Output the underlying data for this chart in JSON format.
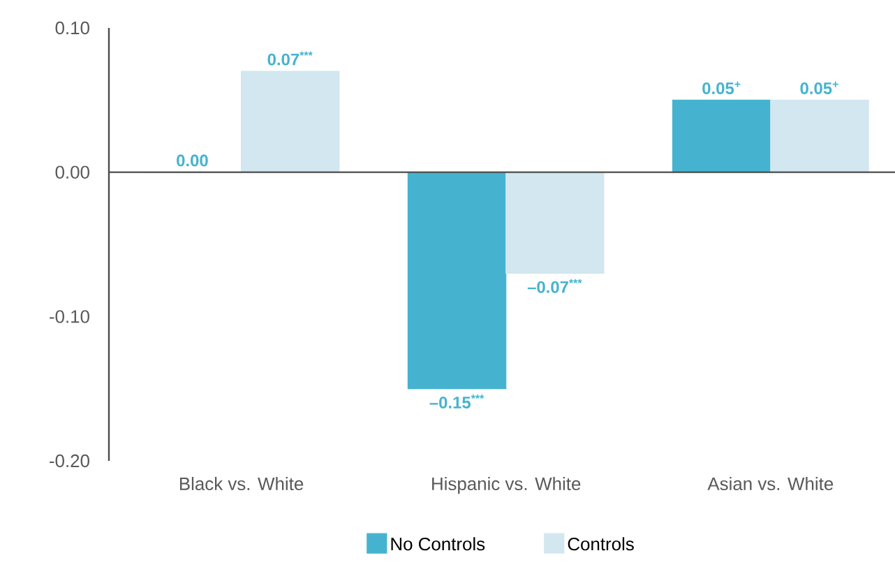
{
  "chart_data": {
    "type": "bar",
    "categories": [
      "Black vs. White",
      "Hispanic vs. White",
      "Asian vs. White"
    ],
    "series": [
      {
        "name": "No Controls",
        "color": "#45b3cf",
        "values": [
          0.0,
          -0.15,
          0.05
        ],
        "value_labels": [
          "0.00",
          "–0.15$^{***}$",
          "0.05$^{+}$"
        ]
      },
      {
        "name": "Controls",
        "color": "#d2e7f0",
        "values": [
          0.07,
          -0.07,
          0.05
        ],
        "value_labels": [
          "0.07$^{***}$",
          "–0.07$^{***}$",
          "0.05$^{+}$"
        ]
      }
    ],
    "ylim": [
      -0.2,
      0.1
    ],
    "yticks": [
      {
        "value": -0.2,
        "label": "-0.20"
      },
      {
        "value": -0.1,
        "label": "-0.10"
      },
      {
        "value": 0,
        "label": "0.00"
      },
      {
        "value": 0.1,
        "label": "0.10"
      }
    ],
    "legend": "bottom"
  }
}
